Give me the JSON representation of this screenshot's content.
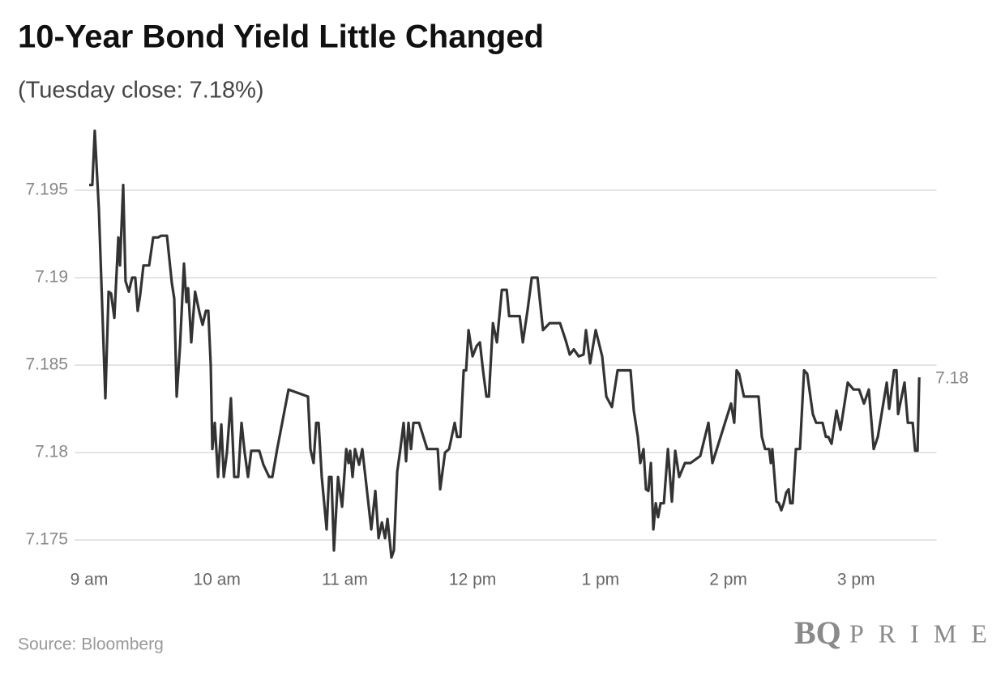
{
  "chart_data": {
    "type": "line",
    "title": "10-Year Bond Yield Little Changed",
    "subtitle": "(Tuesday close: 7.18%)",
    "source": "Source: Bloomberg",
    "logo": {
      "mark": "BQ",
      "word": "PRIME"
    },
    "end_label": "7.18",
    "color": "#333333",
    "grid": true,
    "xlim": [
      8.87,
      15.63
    ],
    "ylim": [
      7.1735,
      7.199
    ],
    "xticks": [
      {
        "value": 9,
        "label": "9 am"
      },
      {
        "value": 10,
        "label": "10 am"
      },
      {
        "value": 11,
        "label": "11 am"
      },
      {
        "value": 12,
        "label": "12 pm"
      },
      {
        "value": 13,
        "label": "1 pm"
      },
      {
        "value": 14,
        "label": "2 pm"
      },
      {
        "value": 15,
        "label": "3 pm"
      }
    ],
    "yticks": [
      7.175,
      7.18,
      7.185,
      7.19,
      7.195
    ],
    "x": [
      9.0,
      9.025,
      9.044,
      9.076,
      9.127,
      9.152,
      9.171,
      9.197,
      9.228,
      9.241,
      9.266,
      9.285,
      9.311,
      9.336,
      9.361,
      9.38,
      9.399,
      9.425,
      9.469,
      9.501,
      9.539,
      9.564,
      9.609,
      9.647,
      9.666,
      9.685,
      9.71,
      9.742,
      9.761,
      9.774,
      9.799,
      9.829,
      9.863,
      9.888,
      9.913,
      9.932,
      9.951,
      9.964,
      9.983,
      10.008,
      10.034,
      10.053,
      10.078,
      10.109,
      10.135,
      10.166,
      10.192,
      10.217,
      10.243,
      10.268,
      10.331,
      10.363,
      10.408,
      10.433,
      10.471,
      10.56,
      10.712,
      10.731,
      10.756,
      10.776,
      10.795,
      10.82,
      10.858,
      10.877,
      10.896,
      10.915,
      10.947,
      10.979,
      11.011,
      11.03,
      11.042,
      11.061,
      11.08,
      11.112,
      11.137,
      11.169,
      11.207,
      11.239,
      11.264,
      11.29,
      11.315,
      11.334,
      11.365,
      11.384,
      11.41,
      11.435,
      11.46,
      11.479,
      11.498,
      11.518,
      11.537,
      11.581,
      11.645,
      11.727,
      11.746,
      11.784,
      11.816,
      11.86,
      11.879,
      11.905,
      11.93,
      11.949,
      11.968,
      12.0,
      12.032,
      12.057,
      12.083,
      12.108,
      12.127,
      12.159,
      12.19,
      12.229,
      12.267,
      12.286,
      12.368,
      12.393,
      12.431,
      12.463,
      12.508,
      12.551,
      12.602,
      12.684,
      12.729,
      12.76,
      12.792,
      12.83,
      12.868,
      12.887,
      12.919,
      12.963,
      13.014,
      13.046,
      13.09,
      13.134,
      13.236,
      13.261,
      13.293,
      13.312,
      13.337,
      13.356,
      13.375,
      13.395,
      13.414,
      13.433,
      13.451,
      13.47,
      13.496,
      13.528,
      13.559,
      13.585,
      13.616,
      13.661,
      13.705,
      13.781,
      13.845,
      13.876,
      14.022,
      14.047,
      14.066,
      14.085,
      14.123,
      14.237,
      14.263,
      14.288,
      14.32,
      14.333,
      14.345,
      14.377,
      14.396,
      14.415,
      14.434,
      14.453,
      14.472,
      14.485,
      14.503,
      14.529,
      14.561,
      14.593,
      14.618,
      14.662,
      14.688,
      14.738,
      14.764,
      14.783,
      14.808,
      14.847,
      14.878,
      14.935,
      14.98,
      15.024,
      15.062,
      15.1,
      15.138,
      15.17,
      15.24,
      15.259,
      15.297,
      15.316,
      15.329,
      15.379,
      15.405,
      15.443,
      15.462,
      15.481,
      15.494
    ],
    "values": [
      7.1953,
      7.1953,
      7.1984,
      7.1939,
      7.1831,
      7.1892,
      7.1891,
      7.1877,
      7.1923,
      7.1907,
      7.1953,
      7.1898,
      7.1892,
      7.19,
      7.19,
      7.1881,
      7.189,
      7.1907,
      7.1907,
      7.1923,
      7.1923,
      7.1924,
      7.1924,
      7.1897,
      7.1888,
      7.1832,
      7.186,
      7.1908,
      7.1886,
      7.1894,
      7.1863,
      7.1892,
      7.188,
      7.1873,
      7.1881,
      7.1881,
      7.185,
      7.1802,
      7.1817,
      7.1786,
      7.1816,
      7.1786,
      7.18,
      7.1831,
      7.1786,
      7.1786,
      7.1817,
      7.18,
      7.1786,
      7.1801,
      7.1801,
      7.1793,
      7.1786,
      7.1786,
      7.1802,
      7.1836,
      7.1832,
      7.1802,
      7.1794,
      7.1817,
      7.1817,
      7.1786,
      7.1756,
      7.1786,
      7.1786,
      7.1744,
      7.1786,
      7.1769,
      7.1802,
      7.1794,
      7.1801,
      7.1786,
      7.1802,
      7.1793,
      7.1802,
      7.1781,
      7.1756,
      7.1778,
      7.1751,
      7.176,
      7.1751,
      7.1762,
      7.174,
      7.1744,
      7.1789,
      7.1802,
      7.1817,
      7.1795,
      7.1817,
      7.1802,
      7.1817,
      7.1817,
      7.1802,
      7.1802,
      7.1779,
      7.18,
      7.1802,
      7.1817,
      7.1809,
      7.1809,
      7.1847,
      7.1847,
      7.187,
      7.1855,
      7.1861,
      7.1863,
      7.1846,
      7.1832,
      7.1832,
      7.1874,
      7.1863,
      7.1893,
      7.1893,
      7.1878,
      7.1878,
      7.1863,
      7.1882,
      7.19,
      7.19,
      7.187,
      7.1874,
      7.1874,
      7.1864,
      7.1856,
      7.1859,
      7.1855,
      7.1856,
      7.187,
      7.1851,
      7.187,
      7.1855,
      7.1832,
      7.1826,
      7.1847,
      7.1847,
      7.1824,
      7.1809,
      7.1794,
      7.1802,
      7.1779,
      7.1778,
      7.1794,
      7.1756,
      7.1771,
      7.1763,
      7.1771,
      7.1771,
      7.1802,
      7.1772,
      7.1801,
      7.1786,
      7.1794,
      7.1794,
      7.1798,
      7.1817,
      7.1794,
      7.1828,
      7.1817,
      7.1847,
      7.1845,
      7.1832,
      7.1832,
      7.1809,
      7.1802,
      7.1802,
      7.1794,
      7.1802,
      7.1772,
      7.1771,
      7.1767,
      7.1771,
      7.1777,
      7.1779,
      7.1771,
      7.1771,
      7.1802,
      7.1802,
      7.1847,
      7.1845,
      7.1822,
      7.1817,
      7.1817,
      7.1809,
      7.1809,
      7.1805,
      7.1824,
      7.1813,
      7.184,
      7.1836,
      7.1836,
      7.1828,
      7.1836,
      7.1802,
      7.1809,
      7.184,
      7.1825,
      7.1847,
      7.1847,
      7.1822,
      7.184,
      7.1817,
      7.1817,
      7.1801,
      7.1801,
      7.1843
    ]
  }
}
